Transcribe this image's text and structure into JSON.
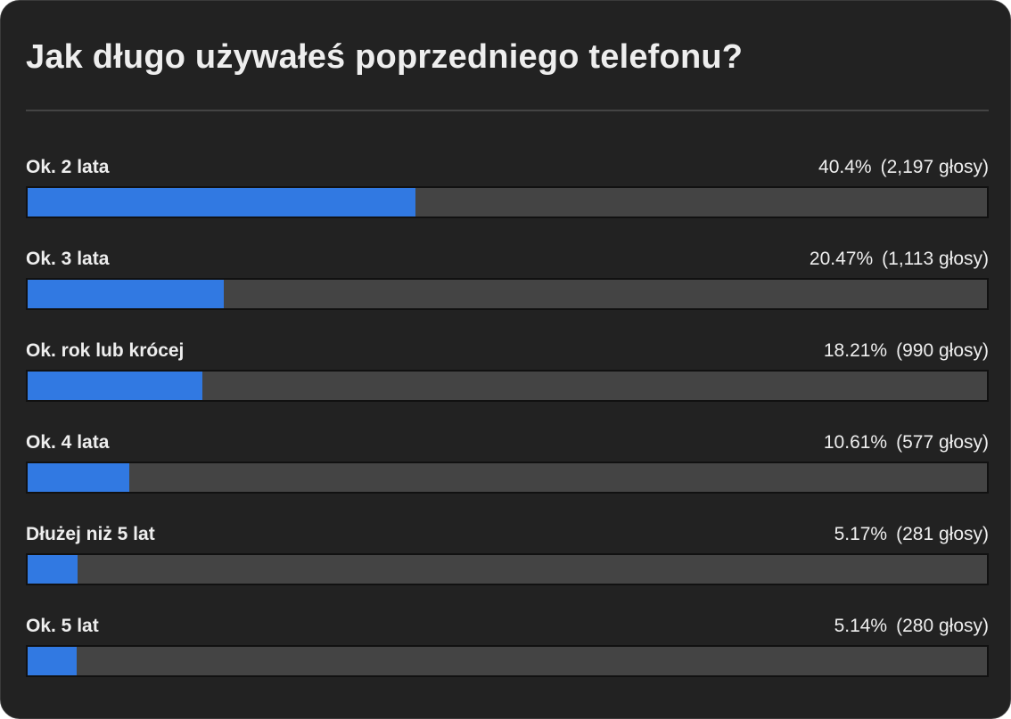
{
  "poll": {
    "title": "Jak długo używałeś poprzedniego telefonu?",
    "colors": {
      "background": "#222222",
      "bar_fill": "#3179e2",
      "bar_track": "#444444",
      "text": "#eeeeee"
    },
    "options": [
      {
        "label": "Ok. 2 lata",
        "percent": "40.4%",
        "votes": "(2,197 głosy)",
        "value": 40.4
      },
      {
        "label": "Ok. 3 lata",
        "percent": "20.47%",
        "votes": "(1,113 głosy)",
        "value": 20.47
      },
      {
        "label": "Ok. rok lub krócej",
        "percent": "18.21%",
        "votes": "(990 głosy)",
        "value": 18.21
      },
      {
        "label": "Ok. 4 lata",
        "percent": "10.61%",
        "votes": "(577 głosy)",
        "value": 10.61
      },
      {
        "label": "Dłużej niż 5 lat",
        "percent": "5.17%",
        "votes": "(281 głosy)",
        "value": 5.17
      },
      {
        "label": "Ok. 5 lat",
        "percent": "5.14%",
        "votes": "(280 głosy)",
        "value": 5.14
      }
    ]
  },
  "chart_data": {
    "type": "bar",
    "orientation": "horizontal",
    "title": "Jak długo używałeś poprzedniego telefonu?",
    "categories": [
      "Ok. 2 lata",
      "Ok. 3 lata",
      "Ok. rok lub krócej",
      "Ok. 4 lata",
      "Dłużej niż 5 lat",
      "Ok. 5 lat"
    ],
    "series": [
      {
        "name": "percent",
        "values": [
          40.4,
          20.47,
          18.21,
          10.61,
          5.17,
          5.14
        ]
      },
      {
        "name": "votes",
        "values": [
          2197,
          1113,
          990,
          577,
          281,
          280
        ]
      }
    ],
    "xlabel": "",
    "ylabel": "",
    "xlim": [
      0,
      100
    ],
    "grid": false,
    "legend": "none"
  }
}
